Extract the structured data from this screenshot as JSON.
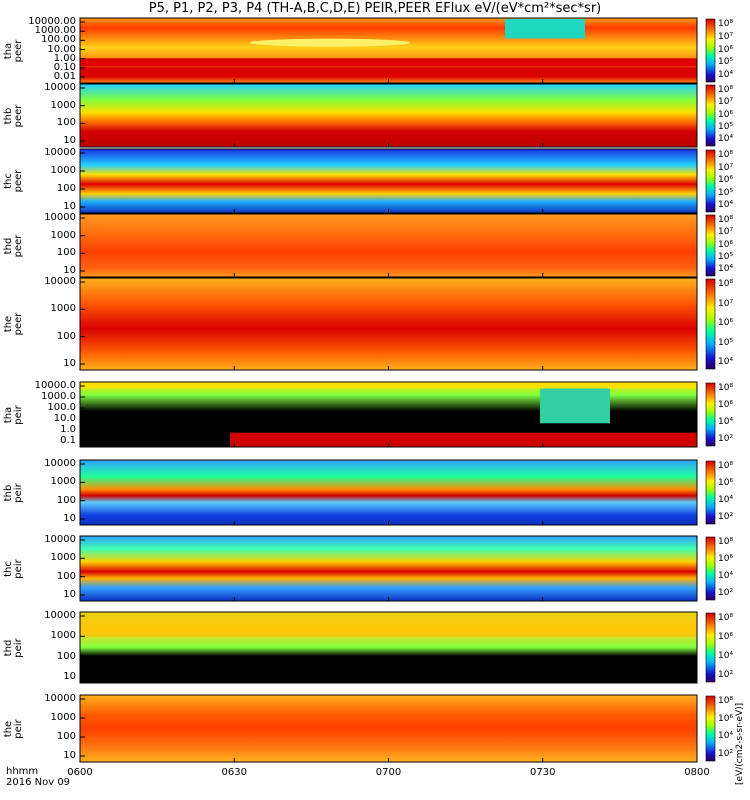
{
  "title": "P5, P1, P2, P3, P4 (TH-A,B,C,D,E) PEIR,PEER EFlux eV/(eV*cm²*sec*sr)",
  "x_axis": {
    "label_line1": "hhmm",
    "label_line2": "2016 Nov 09",
    "ticks": [
      "0600",
      "0630",
      "0700",
      "0730",
      "0800"
    ]
  },
  "colorbar_units": "[eV/(cm2-s-sr-eV)]",
  "chart_data": {
    "type": "heatmap",
    "x_range": [
      "06:00",
      "08:00"
    ],
    "panels": [
      {
        "id": "tha_peer",
        "label": "tha\npeer",
        "yticks": [
          "10000.00",
          "1000.00",
          "100.00",
          "10.00",
          "1.00",
          "0.10",
          "0.01"
        ],
        "cb_ticks": [
          "10⁴",
          "10⁵",
          "10⁶",
          "10⁷",
          "10⁸"
        ],
        "scale": "log"
      },
      {
        "id": "thb_peer",
        "label": "thb\npeer",
        "yticks": [
          "10000",
          "1000",
          "100",
          "10"
        ],
        "cb_ticks": [
          "10⁴",
          "10⁵",
          "10⁶",
          "10⁷",
          "10⁸"
        ],
        "scale": "log"
      },
      {
        "id": "thc_peer",
        "label": "thc\npeer",
        "yticks": [
          "10000",
          "1000",
          "100",
          "10"
        ],
        "cb_ticks": [
          "10⁴",
          "10⁵",
          "10⁶",
          "10⁷",
          "10⁸"
        ],
        "scale": "log"
      },
      {
        "id": "thd_peer",
        "label": "thd\npeer",
        "yticks": [
          "10000",
          "1000",
          "100",
          "10"
        ],
        "cb_ticks": [
          "10⁴",
          "10⁵",
          "10⁶",
          "10⁷",
          "10⁸"
        ],
        "scale": "log"
      },
      {
        "id": "the_peer",
        "label": "the\npeer",
        "yticks": [
          "10000",
          "1000",
          "100",
          "10"
        ],
        "cb_ticks": [
          "10⁴",
          "10⁵",
          "10⁶",
          "10⁷",
          "10⁸"
        ],
        "scale": "log"
      },
      {
        "id": "tha_peir",
        "label": "tha\npeir",
        "yticks": [
          "10000.0",
          "1000.0",
          "100.0",
          "10.0",
          "1.0",
          "0.1"
        ],
        "cb_ticks": [
          "10²",
          "10⁴",
          "10⁶",
          "10⁸"
        ],
        "scale": "log"
      },
      {
        "id": "thb_peir",
        "label": "thb\npeir",
        "yticks": [
          "10000",
          "1000",
          "100",
          "10"
        ],
        "cb_ticks": [
          "10²",
          "10⁴",
          "10⁶",
          "10⁸"
        ],
        "scale": "log"
      },
      {
        "id": "thc_peir",
        "label": "thc\npeir",
        "yticks": [
          "10000",
          "1000",
          "100",
          "10"
        ],
        "cb_ticks": [
          "10²",
          "10⁴",
          "10⁶",
          "10⁸"
        ],
        "scale": "log"
      },
      {
        "id": "thd_peir",
        "label": "thd\npeir",
        "yticks": [
          "10000",
          "1000",
          "100",
          "10"
        ],
        "cb_ticks": [
          "10²",
          "10⁴",
          "10⁶",
          "10⁸"
        ],
        "scale": "log"
      },
      {
        "id": "the_peir",
        "label": "the\npeir",
        "yticks": [
          "10000",
          "1000",
          "100",
          "10"
        ],
        "cb_ticks": [
          "10²",
          "10⁴",
          "10⁶",
          "10⁸"
        ],
        "scale": "log"
      }
    ]
  }
}
